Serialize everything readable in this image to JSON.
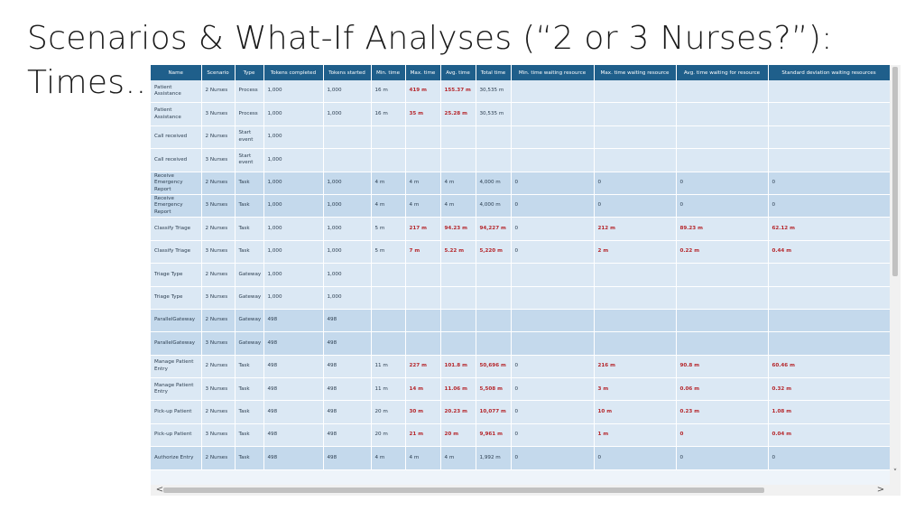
{
  "title": {
    "line1": "Scenarios & What-If Analyses (“2 or 3 Nurses?”):",
    "line2": "Times…"
  },
  "columns": [
    "Name",
    "Scenario",
    "Type",
    "Tokens completed",
    "Tokens started",
    "Min. time",
    "Max. time",
    "Avg. time",
    "Total time",
    "Min. time waiting resource",
    "Max. time waiting resource",
    "Avg. time waiting for resource",
    "Standard deviation waiting resources"
  ],
  "rows": [
    {
      "tone": "light",
      "cells": [
        "Patient Assistance",
        "2 Nurses",
        "Process",
        "1,000",
        "1,000",
        "16 m",
        "419 m",
        "155.37 m",
        "30,535 m",
        "",
        "",
        "",
        ""
      ],
      "hl": [
        6,
        7
      ]
    },
    {
      "tone": "light",
      "cells": [
        "Patient Assistance",
        "3 Nurses",
        "Process",
        "1,000",
        "1,000",
        "16 m",
        "35 m",
        "25.28 m",
        "30,535 m",
        "",
        "",
        "",
        ""
      ],
      "hl": [
        6,
        7
      ]
    },
    {
      "tone": "light",
      "cells": [
        "Call received",
        "2 Nurses",
        "Start event",
        "1,000",
        "",
        "",
        "",
        "",
        "",
        "",
        "",
        "",
        ""
      ],
      "hl": []
    },
    {
      "tone": "light",
      "cells": [
        "Call received",
        "3 Nurses",
        "Start event",
        "1,000",
        "",
        "",
        "",
        "",
        "",
        "",
        "",
        "",
        ""
      ],
      "hl": []
    },
    {
      "tone": "dark",
      "cells": [
        "Receive Emergency Report",
        "2 Nurses",
        "Task",
        "1,000",
        "1,000",
        "4 m",
        "4 m",
        "4 m",
        "4,000 m",
        "0",
        "0",
        "0",
        "0"
      ],
      "hl": []
    },
    {
      "tone": "dark",
      "cells": [
        "Receive Emergency Report",
        "3 Nurses",
        "Task",
        "1,000",
        "1,000",
        "4 m",
        "4 m",
        "4 m",
        "4,000 m",
        "0",
        "0",
        "0",
        "0"
      ],
      "hl": []
    },
    {
      "tone": "light",
      "cells": [
        "Classify Triage",
        "2 Nurses",
        "Task",
        "1,000",
        "1,000",
        "5 m",
        "217 m",
        "94.23 m",
        "94,227 m",
        "0",
        "212 m",
        "89.23 m",
        "62.12 m"
      ],
      "hl": [
        6,
        7,
        8,
        10,
        11,
        12
      ]
    },
    {
      "tone": "light",
      "cells": [
        "Classify Triage",
        "3 Nurses",
        "Task",
        "1,000",
        "1,000",
        "5 m",
        "7 m",
        "5.22 m",
        "5,220 m",
        "0",
        "2 m",
        "0.22 m",
        "0.44 m"
      ],
      "hl": [
        6,
        7,
        8,
        10,
        11,
        12
      ]
    },
    {
      "tone": "light",
      "cells": [
        "Triage Type",
        "2 Nurses",
        "Gateway",
        "1,000",
        "1,000",
        "",
        "",
        "",
        "",
        "",
        "",
        "",
        ""
      ],
      "hl": []
    },
    {
      "tone": "light",
      "cells": [
        "Triage Type",
        "3 Nurses",
        "Gateway",
        "1,000",
        "1,000",
        "",
        "",
        "",
        "",
        "",
        "",
        "",
        ""
      ],
      "hl": []
    },
    {
      "tone": "dark",
      "cells": [
        "ParallelGateway",
        "2 Nurses",
        "Gateway",
        "498",
        "498",
        "",
        "",
        "",
        "",
        "",
        "",
        "",
        ""
      ],
      "hl": []
    },
    {
      "tone": "dark",
      "cells": [
        "ParallelGateway",
        "3 Nurses",
        "Gateway",
        "498",
        "498",
        "",
        "",
        "",
        "",
        "",
        "",
        "",
        ""
      ],
      "hl": []
    },
    {
      "tone": "light",
      "cells": [
        "Manage Patient Entry",
        "2 Nurses",
        "Task",
        "498",
        "498",
        "11 m",
        "227 m",
        "101.8 m",
        "50,696 m",
        "0",
        "216 m",
        "90.8 m",
        "60.46 m"
      ],
      "hl": [
        6,
        7,
        8,
        10,
        11,
        12
      ]
    },
    {
      "tone": "light",
      "cells": [
        "Manage Patient Entry",
        "3 Nurses",
        "Task",
        "498",
        "498",
        "11 m",
        "14 m",
        "11.06 m",
        "5,508 m",
        "0",
        "3 m",
        "0.06 m",
        "0.32 m"
      ],
      "hl": [
        6,
        7,
        8,
        10,
        11,
        12
      ]
    },
    {
      "tone": "light",
      "cells": [
        "Pick-up Patient",
        "2 Nurses",
        "Task",
        "498",
        "498",
        "20 m",
        "30 m",
        "20.23 m",
        "10,077 m",
        "0",
        "10 m",
        "0.23 m",
        "1.08 m"
      ],
      "hl": [
        6,
        7,
        8,
        10,
        11,
        12
      ]
    },
    {
      "tone": "light",
      "cells": [
        "Pick-up Patient",
        "3 Nurses",
        "Task",
        "498",
        "498",
        "20 m",
        "21 m",
        "20 m",
        "9,961 m",
        "0",
        "1 m",
        "0",
        "0.04 m"
      ],
      "hl": [
        6,
        7,
        8,
        10,
        11,
        12
      ]
    },
    {
      "tone": "dark",
      "cells": [
        "Authorize Entry",
        "2 Nurses",
        "Task",
        "498",
        "498",
        "4 m",
        "4 m",
        "4 m",
        "1,992 m",
        "0",
        "0",
        "0",
        "0"
      ],
      "hl": []
    }
  ],
  "scrollbars": {
    "vertical_down": "˅",
    "horizontal_left": "<",
    "horizontal_right": ">"
  }
}
